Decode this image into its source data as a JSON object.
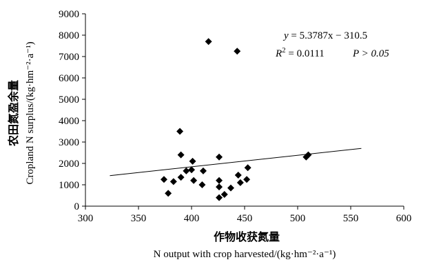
{
  "chart_data": {
    "type": "scatter",
    "xlabel_cn": "作物收获氮量",
    "xlabel_en": "N output with crop harvested/(kg·hm⁻²·a⁻¹)",
    "ylabel_cn": "农田氮盈余量",
    "ylabel_en": "Cropland N surplus/(kg·hm⁻²·a⁻¹)",
    "xlim": [
      300,
      600
    ],
    "ylim": [
      0,
      9000
    ],
    "xticks": [
      300,
      350,
      400,
      450,
      500,
      550,
      600
    ],
    "yticks": [
      0,
      1000,
      2000,
      3000,
      4000,
      5000,
      6000,
      7000,
      8000,
      9000
    ],
    "grid": false,
    "points": [
      {
        "x": 374,
        "y": 1250
      },
      {
        "x": 378,
        "y": 600
      },
      {
        "x": 383,
        "y": 1150
      },
      {
        "x": 389,
        "y": 3500
      },
      {
        "x": 390,
        "y": 2400
      },
      {
        "x": 390,
        "y": 1350
      },
      {
        "x": 395,
        "y": 1650
      },
      {
        "x": 400,
        "y": 1700
      },
      {
        "x": 401,
        "y": 2100
      },
      {
        "x": 402,
        "y": 1200
      },
      {
        "x": 410,
        "y": 1000
      },
      {
        "x": 411,
        "y": 1650
      },
      {
        "x": 416,
        "y": 7700
      },
      {
        "x": 426,
        "y": 2300
      },
      {
        "x": 426,
        "y": 1200
      },
      {
        "x": 426,
        "y": 900
      },
      {
        "x": 426,
        "y": 400
      },
      {
        "x": 431,
        "y": 550
      },
      {
        "x": 437,
        "y": 850
      },
      {
        "x": 443,
        "y": 7250
      },
      {
        "x": 444,
        "y": 1450
      },
      {
        "x": 446,
        "y": 1100
      },
      {
        "x": 452,
        "y": 1250
      },
      {
        "x": 453,
        "y": 1800
      },
      {
        "x": 508,
        "y": 2300
      },
      {
        "x": 510,
        "y": 2400
      }
    ],
    "trendline": {
      "slope": 5.3787,
      "intercept": -310.5,
      "x_range": [
        323,
        560
      ]
    },
    "annotation": {
      "equation": "5.3787x − 310.5",
      "r2": "0.0111",
      "p": "P > 0.05"
    }
  }
}
